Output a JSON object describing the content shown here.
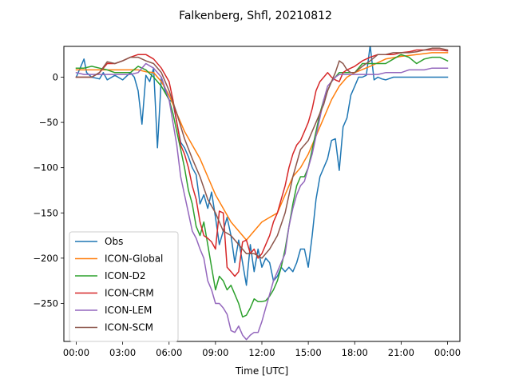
{
  "chart_data": {
    "type": "line",
    "title": "Falkenberg, Shfl, 20210812",
    "xlabel": "Time [UTC]",
    "ylabel": "",
    "xlim": [
      -0.8,
      24.8
    ],
    "ylim": [
      -292,
      34
    ],
    "xticks": [
      0,
      3,
      6,
      9,
      12,
      15,
      18,
      21,
      24
    ],
    "xticklabels": [
      "00:00",
      "03:00",
      "06:00",
      "09:00",
      "12:00",
      "15:00",
      "18:00",
      "21:00",
      "00:00"
    ],
    "yticks": [
      0,
      -50,
      -100,
      -150,
      -200,
      -250
    ],
    "yticklabels": [
      "0",
      "−50",
      "−100",
      "−150",
      "−200",
      "−250"
    ],
    "grid": false,
    "legend_position": "lower-left",
    "series": [
      {
        "name": "Obs",
        "color": "#1f77b4",
        "x": [
          0,
          0.5,
          0.67,
          1,
          1.5,
          1.75,
          2,
          2.5,
          3,
          3.5,
          3.75,
          4,
          4.25,
          4.5,
          4.75,
          5,
          5.25,
          5.5,
          5.75,
          6,
          6.25,
          6.5,
          6.75,
          7,
          7.25,
          7.5,
          7.75,
          8,
          8.25,
          8.5,
          8.75,
          9,
          9.25,
          9.5,
          9.75,
          10,
          10.25,
          10.5,
          10.75,
          11,
          11.25,
          11.5,
          11.75,
          12,
          12.25,
          12.5,
          12.75,
          13,
          13.25,
          13.5,
          13.75,
          14,
          14.25,
          14.5,
          14.75,
          15,
          15.25,
          15.5,
          15.75,
          16,
          16.25,
          16.5,
          16.75,
          17,
          17.25,
          17.5,
          17.75,
          18,
          18.25,
          18.5,
          18.75,
          19,
          19.25,
          19.5,
          19.75,
          20,
          20.5,
          21,
          21.5,
          22,
          22.5,
          23,
          23.5,
          24
        ],
        "y": [
          0,
          20,
          5,
          0,
          -2,
          5,
          -3,
          2,
          -3,
          5,
          0,
          -15,
          -52,
          2,
          -5,
          10,
          -78,
          0,
          -15,
          -25,
          -28,
          -50,
          -72,
          -78,
          -88,
          -100,
          -108,
          -140,
          -130,
          -145,
          -127,
          -155,
          -185,
          -170,
          -155,
          -175,
          -205,
          -180,
          -205,
          -230,
          -185,
          -215,
          -190,
          -210,
          -200,
          -205,
          -225,
          -220,
          -210,
          -215,
          -210,
          -215,
          -205,
          -190,
          -190,
          -210,
          -175,
          -135,
          -110,
          -100,
          -90,
          -70,
          -68,
          -103,
          -55,
          -45,
          -20,
          -10,
          0,
          0,
          2,
          35,
          -3,
          0,
          -2,
          -3,
          0,
          0,
          0,
          0,
          0,
          0,
          0,
          0
        ]
      },
      {
        "name": "ICON-Global",
        "color": "#ff7f0e",
        "x": [
          0,
          1,
          2,
          3,
          4,
          4.5,
          5,
          5.5,
          6,
          6.5,
          7,
          7.5,
          8,
          8.5,
          9,
          9.5,
          10,
          10.5,
          11,
          11.5,
          12,
          12.5,
          13,
          13.5,
          14,
          14.5,
          15,
          15.5,
          16,
          16.5,
          17,
          17.5,
          18,
          19,
          20,
          21,
          22,
          23,
          24
        ],
        "y": [
          8,
          8,
          8,
          8,
          8,
          6,
          5,
          -5,
          -20,
          -40,
          -60,
          -75,
          -90,
          -110,
          -130,
          -145,
          -160,
          -170,
          -180,
          -170,
          -160,
          -155,
          -150,
          -130,
          -110,
          -100,
          -85,
          -65,
          -45,
          -25,
          -10,
          0,
          5,
          12,
          20,
          23,
          25,
          27,
          27
        ]
      },
      {
        "name": "ICON-D2",
        "color": "#2ca02c",
        "x": [
          0,
          0.5,
          1,
          1.5,
          2,
          2.5,
          3,
          3.5,
          4,
          4.5,
          5,
          5.5,
          6,
          6.25,
          6.5,
          6.75,
          7,
          7.25,
          7.5,
          7.75,
          8,
          8.25,
          8.5,
          8.75,
          9,
          9.25,
          9.5,
          9.75,
          10,
          10.25,
          10.5,
          10.75,
          11,
          11.25,
          11.5,
          11.75,
          12,
          12.25,
          12.5,
          12.75,
          13,
          13.25,
          13.5,
          13.75,
          14,
          14.25,
          14.5,
          14.75,
          15,
          15.25,
          15.5,
          15.75,
          16,
          16.25,
          16.5,
          16.75,
          17,
          17.5,
          18,
          18.5,
          19,
          19.5,
          20,
          20.5,
          21,
          21.5,
          22,
          22.5,
          23,
          23.5,
          24
        ],
        "y": [
          10,
          10,
          12,
          10,
          8,
          5,
          5,
          5,
          12,
          8,
          0,
          -10,
          -25,
          -40,
          -60,
          -80,
          -100,
          -125,
          -140,
          -165,
          -175,
          -160,
          -185,
          -210,
          -235,
          -220,
          -225,
          -235,
          -230,
          -240,
          -250,
          -265,
          -263,
          -255,
          -245,
          -248,
          -248,
          -247,
          -242,
          -235,
          -225,
          -210,
          -190,
          -165,
          -140,
          -120,
          -110,
          -110,
          -100,
          -80,
          -60,
          -40,
          -25,
          -15,
          -5,
          0,
          5,
          5,
          5,
          15,
          15,
          15,
          15,
          20,
          25,
          22,
          15,
          20,
          22,
          22,
          18
        ]
      },
      {
        "name": "ICON-CRM",
        "color": "#d62728",
        "x": [
          0,
          0.5,
          1,
          1.5,
          2,
          2.5,
          3,
          3.5,
          4,
          4.5,
          5,
          5.5,
          6,
          6.25,
          6.5,
          6.75,
          7,
          7.25,
          7.5,
          7.75,
          8,
          8.25,
          8.5,
          8.75,
          9,
          9.25,
          9.5,
          9.75,
          10,
          10.25,
          10.5,
          10.75,
          11,
          11.25,
          11.5,
          11.75,
          12,
          12.25,
          12.5,
          12.75,
          13,
          13.25,
          13.5,
          13.75,
          14,
          14.25,
          14.5,
          14.75,
          15,
          15.25,
          15.5,
          15.75,
          16,
          16.25,
          16.5,
          16.75,
          17,
          17.25,
          17.5,
          17.75,
          18,
          18.5,
          19,
          19.5,
          20,
          20.5,
          21,
          21.5,
          22,
          22.5,
          23,
          23.5,
          24
        ],
        "y": [
          0,
          0,
          0,
          5,
          15,
          15,
          18,
          22,
          25,
          25,
          20,
          10,
          -5,
          -25,
          -50,
          -75,
          -85,
          -100,
          -120,
          -135,
          -160,
          -175,
          -178,
          -182,
          -190,
          -148,
          -150,
          -210,
          -215,
          -220,
          -215,
          -182,
          -180,
          -195,
          -190,
          -200,
          -195,
          -185,
          -175,
          -160,
          -150,
          -135,
          -120,
          -100,
          -85,
          -75,
          -70,
          -60,
          -50,
          -35,
          -15,
          -5,
          0,
          5,
          0,
          -3,
          -5,
          5,
          8,
          10,
          12,
          18,
          22,
          25,
          25,
          25,
          27,
          28,
          30,
          30,
          30,
          30,
          29
        ]
      },
      {
        "name": "ICON-LEM",
        "color": "#9467bd",
        "x": [
          0,
          0.5,
          1,
          1.5,
          2,
          2.5,
          3,
          3.5,
          4,
          4.5,
          5,
          5.5,
          6,
          6.25,
          6.5,
          6.75,
          7,
          7.25,
          7.5,
          7.75,
          8,
          8.25,
          8.5,
          8.75,
          9,
          9.25,
          9.5,
          9.75,
          10,
          10.25,
          10.5,
          10.75,
          11,
          11.25,
          11.5,
          11.75,
          12,
          12.25,
          12.5,
          12.75,
          13,
          13.25,
          13.5,
          13.75,
          14,
          14.25,
          14.5,
          14.75,
          15,
          15.25,
          15.5,
          15.75,
          16,
          16.25,
          16.5,
          16.75,
          17,
          17.5,
          18,
          18.5,
          19,
          19.5,
          20,
          20.5,
          21,
          21.5,
          22,
          22.5,
          23,
          23.5,
          24
        ],
        "y": [
          5,
          3,
          3,
          3,
          3,
          3,
          3,
          3,
          5,
          15,
          10,
          0,
          -25,
          -50,
          -75,
          -110,
          -130,
          -150,
          -170,
          -178,
          -190,
          -200,
          -225,
          -235,
          -250,
          -250,
          -255,
          -262,
          -280,
          -282,
          -275,
          -285,
          -290,
          -285,
          -282,
          -282,
          -270,
          -255,
          -240,
          -225,
          -215,
          -205,
          -195,
          -165,
          -145,
          -130,
          -120,
          -115,
          -100,
          -85,
          -65,
          -45,
          -25,
          -10,
          -5,
          0,
          3,
          3,
          3,
          3,
          3,
          3,
          5,
          5,
          5,
          8,
          8,
          8,
          10,
          10,
          10
        ]
      },
      {
        "name": "ICON-SCM",
        "color": "#8c564b",
        "x": [
          0,
          0.5,
          1,
          1.5,
          2,
          2.5,
          3,
          3.5,
          4,
          4.5,
          5,
          5.5,
          6,
          6.5,
          7,
          7.5,
          8,
          8.5,
          9,
          9.5,
          10,
          10.5,
          11,
          11.5,
          12,
          12.5,
          13,
          13.5,
          14,
          14.5,
          15,
          15.5,
          16,
          16.25,
          16.5,
          16.75,
          17,
          17.25,
          17.5,
          17.75,
          18,
          18.5,
          19,
          19.5,
          20,
          20.5,
          21,
          21.5,
          22,
          22.5,
          23,
          23.5,
          24
        ],
        "y": [
          0,
          0,
          0,
          5,
          17,
          15,
          18,
          22,
          22,
          18,
          15,
          5,
          -15,
          -40,
          -68,
          -90,
          -110,
          -135,
          -150,
          -170,
          -175,
          -185,
          -195,
          -195,
          -200,
          -190,
          -175,
          -150,
          -110,
          -80,
          -70,
          -50,
          -30,
          -15,
          -5,
          5,
          18,
          15,
          8,
          5,
          5,
          12,
          18,
          25,
          25,
          27,
          27,
          27,
          28,
          30,
          32,
          32,
          30
        ]
      }
    ]
  }
}
